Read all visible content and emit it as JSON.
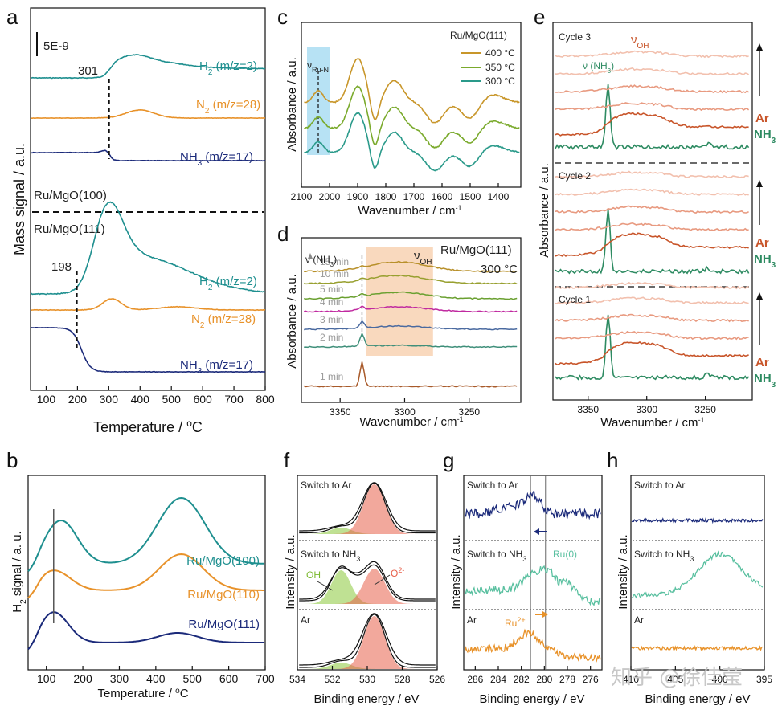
{
  "watermark": "知乎 @徐佳莹",
  "colors": {
    "teal": "#1e8f8f",
    "orange": "#e8922a",
    "navy": "#1b2a7a",
    "c_gold": "#c8962a",
    "c_olive": "#7aaa2c",
    "c_teal": "#2a9a8a",
    "d_brown": "#a85a2a",
    "d_teal": "#3f8f7a",
    "d_blue": "#4a6aa0",
    "d_magenta": "#c02aa0",
    "d_green": "#6aa030",
    "d_olive": "#98a030",
    "d_gold": "#b8902a",
    "e_green": "#2e8b62",
    "e_red": "#c8552a",
    "e_pink": "#e89a80",
    "e_light": "#f2c0ae",
    "xps_red": "#e8604a",
    "xps_green": "#8ac83a",
    "g_teal": "#5ac0a0"
  },
  "chart_data": [
    {
      "panel": "a",
      "type": "line",
      "xlabel": "Temperature / °C",
      "ylabel": "Mass signal / a.u.",
      "xlim": [
        50,
        800
      ],
      "xticks": [
        "100",
        "200",
        "300",
        "400",
        "500",
        "600",
        "700",
        "800"
      ],
      "scale_bar": "5E-9",
      "groups": [
        {
          "name": "Ru/MgO(100)",
          "marker_temp": 301,
          "marker_label": "301",
          "series": [
            {
              "name": "H2 (m/z=2)",
              "label_main": "H",
              "label_sub": "2",
              "label_rest": " (m/z=2)",
              "color": "teal"
            },
            {
              "name": "N2 (m/z=28)",
              "label_main": "N",
              "label_sub": "2",
              "label_rest": " (m/z=28)",
              "color": "orange"
            },
            {
              "name": "NH3 (m/z=17)",
              "label_main": "NH",
              "label_sub": "3",
              "label_rest": " (m/z=17)",
              "color": "navy"
            }
          ]
        },
        {
          "name": "Ru/MgO(111)",
          "marker_temp": 198,
          "marker_label": "198",
          "series": [
            {
              "name": "H2 (m/z=2)",
              "label_main": "H",
              "label_sub": "2",
              "label_rest": " (m/z=2)",
              "color": "teal"
            },
            {
              "name": "N2 (m/z=28)",
              "label_main": "N",
              "label_sub": "2",
              "label_rest": " (m/z=28)",
              "color": "orange"
            },
            {
              "name": "NH3 (m/z=17)",
              "label_main": "NH",
              "label_sub": "3",
              "label_rest": " (m/z=17)",
              "color": "navy"
            }
          ]
        }
      ]
    },
    {
      "panel": "b",
      "type": "line",
      "xlabel": "Temperature / °C",
      "ylabel": "H2 signal / a.u.",
      "xlim": [
        50,
        700
      ],
      "xticks": [
        "100",
        "200",
        "300",
        "400",
        "500",
        "600",
        "700"
      ],
      "marker_temp": 120,
      "series": [
        {
          "name": "Ru/MgO(100)",
          "color": "teal",
          "peaks": [
            140,
            470
          ]
        },
        {
          "name": "Ru/MgO(110)",
          "color": "orange",
          "peaks": [
            120,
            470
          ]
        },
        {
          "name": "Ru/MgO(111)",
          "color": "navy",
          "peaks": [
            120,
            460
          ]
        }
      ]
    },
    {
      "panel": "c",
      "type": "line",
      "xlabel": "Wavenumber / cm-1",
      "ylabel": "Absorbance / a.u.",
      "xlim": [
        2100,
        1320
      ],
      "xticks": [
        "2100",
        "2000",
        "1900",
        "1800",
        "1700",
        "1600",
        "1500",
        "1400"
      ],
      "legend_title": "Ru/MgO(111)",
      "band_label": "νRu-N",
      "band_range": [
        2080,
        2000
      ],
      "series": [
        {
          "name": "400 °C",
          "color": "c_gold"
        },
        {
          "name": "350 °C",
          "color": "c_olive"
        },
        {
          "name": "300 °C",
          "color": "c_teal"
        }
      ]
    },
    {
      "panel": "d",
      "type": "line",
      "xlabel": "Wavenumber / cm-1",
      "ylabel": "Absorbance / a.u.",
      "xlim": [
        3380,
        3210
      ],
      "xticks": [
        "3350",
        "3300",
        "3250"
      ],
      "title": "Ru/MgO(111)",
      "condition": "300 °C",
      "band_nh3_label": "ν (NH3)",
      "band_oh_label": "νOH",
      "nh3_peak": 3333,
      "oh_range": [
        3330,
        3278
      ],
      "series": [
        {
          "name": "1 min",
          "color": "d_brown"
        },
        {
          "name": "2 min",
          "color": "d_teal"
        },
        {
          "name": "3 min",
          "color": "d_blue"
        },
        {
          "name": "4 min",
          "color": "d_magenta"
        },
        {
          "name": "5 min",
          "color": "d_green"
        },
        {
          "name": "10 min",
          "color": "d_olive"
        },
        {
          "name": "15 min",
          "color": "d_gold"
        }
      ]
    },
    {
      "panel": "e",
      "type": "line",
      "xlabel": "Wavenumber / cm-1",
      "ylabel": "Absorbance / a.u.",
      "xlim": [
        3380,
        3210
      ],
      "xticks": [
        "3350",
        "3300",
        "3250"
      ],
      "oh_label": "νOH",
      "nh3_label": "ν (NH3)",
      "cycles": [
        {
          "name": "Cycle 3",
          "gas_top": "Ar",
          "gas_bottom": "NH3"
        },
        {
          "name": "Cycle 2",
          "gas_top": "Ar",
          "gas_bottom": "NH3"
        },
        {
          "name": "Cycle 1",
          "gas_top": "Ar",
          "gas_bottom": "NH3"
        }
      ]
    },
    {
      "panel": "f",
      "type": "line",
      "xlabel": "Binding energy / eV",
      "ylabel": "Intensity / a.u.",
      "xlim": [
        534,
        526
      ],
      "xticks": [
        "534",
        "532",
        "530",
        "528",
        "526"
      ],
      "states": [
        "Switch to Ar",
        "Switch to NH3",
        "Ar"
      ],
      "peaks": [
        {
          "name": "OH",
          "center": 531.5
        },
        {
          "name": "O2-",
          "center": 529.6
        }
      ]
    },
    {
      "panel": "g",
      "type": "line",
      "xlabel": "Binding energy / eV",
      "ylabel": "Intensity / a.u.",
      "xlim": [
        287,
        275
      ],
      "xticks": [
        "286",
        "284",
        "282",
        "280",
        "278",
        "276"
      ],
      "states": [
        "Switch to Ar",
        "Switch to NH3",
        "Ar"
      ],
      "lines": [
        281.2,
        279.9
      ],
      "annotations": [
        "Ru(0)",
        "Ru2+"
      ]
    },
    {
      "panel": "h",
      "type": "line",
      "xlabel": "Binding energy / eV",
      "ylabel": "Intensity / a.u.",
      "xlim": [
        410,
        395
      ],
      "xticks": [
        "410",
        "405",
        "400",
        "395"
      ],
      "states": [
        "Switch to Ar",
        "Switch to NH3",
        "Ar"
      ],
      "peak_center": 400
    }
  ]
}
